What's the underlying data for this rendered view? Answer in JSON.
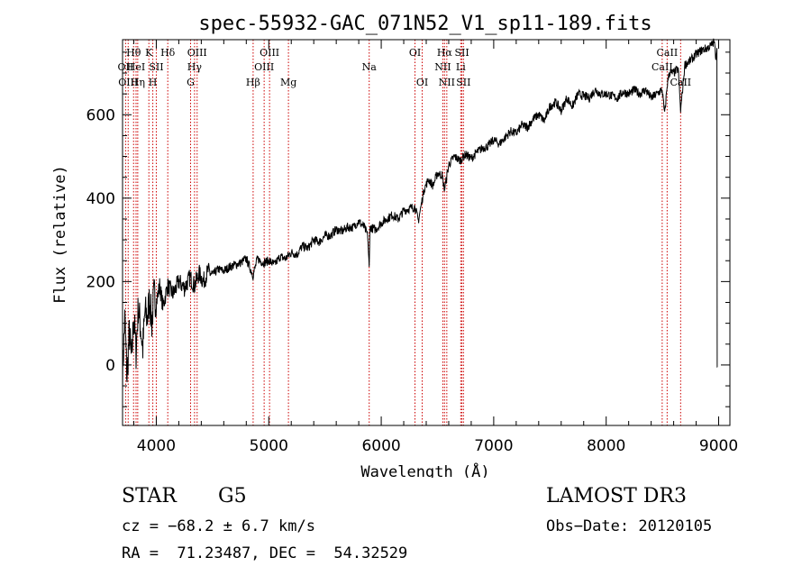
{
  "chart_data": {
    "type": "line",
    "title": "spec-55932-GAC_071N52_V1_sp11-189.fits",
    "xlabel": "Wavelength (Å)",
    "ylabel": "Flux (relative)",
    "xlim": [
      3700,
      9100
    ],
    "ylim": [
      -145,
      780
    ],
    "xticks": [
      4000,
      5000,
      6000,
      7000,
      8000,
      9000
    ],
    "yticks": [
      0,
      200,
      400,
      600
    ],
    "series": [
      {
        "name": "flux",
        "x": [
          3700,
          3720,
          3740,
          3760,
          3780,
          3800,
          3820,
          3840,
          3860,
          3880,
          3900,
          3920,
          3940,
          3960,
          3980,
          4000,
          4030,
          4060,
          4100,
          4150,
          4200,
          4250,
          4300,
          4340,
          4380,
          4420,
          4460,
          4500,
          4550,
          4600,
          4650,
          4700,
          4750,
          4800,
          4860,
          4900,
          4950,
          5000,
          5050,
          5100,
          5150,
          5200,
          5250,
          5300,
          5350,
          5400,
          5450,
          5500,
          5550,
          5600,
          5650,
          5700,
          5750,
          5800,
          5850,
          5880,
          5893,
          5900,
          5950,
          6000,
          6050,
          6100,
          6150,
          6200,
          6250,
          6300,
          6330,
          6380,
          6420,
          6460,
          6500,
          6540,
          6563,
          6600,
          6650,
          6700,
          6750,
          6800,
          6850,
          6900,
          6950,
          7000,
          7050,
          7100,
          7150,
          7200,
          7250,
          7300,
          7350,
          7400,
          7450,
          7500,
          7550,
          7600,
          7650,
          7700,
          7750,
          7800,
          7850,
          7900,
          7950,
          8000,
          8050,
          8100,
          8150,
          8200,
          8250,
          8300,
          8350,
          8400,
          8450,
          8498,
          8520,
          8542,
          8560,
          8600,
          8640,
          8662,
          8700,
          8750,
          8800,
          8850,
          8900,
          8930,
          8960,
          8975,
          8985
        ],
        "y": [
          -20,
          110,
          -30,
          80,
          10,
          120,
          30,
          140,
          90,
          40,
          130,
          110,
          160,
          100,
          170,
          150,
          190,
          140,
          190,
          170,
          200,
          185,
          210,
          190,
          220,
          200,
          225,
          215,
          230,
          225,
          235,
          240,
          245,
          255,
          215,
          255,
          245,
          250,
          240,
          260,
          255,
          270,
          265,
          285,
          280,
          300,
          295,
          310,
          310,
          325,
          320,
          330,
          330,
          345,
          330,
          310,
          230,
          330,
          325,
          340,
          350,
          360,
          350,
          370,
          375,
          380,
          345,
          420,
          445,
          430,
          460,
          455,
          420,
          480,
          500,
          490,
          505,
          495,
          510,
          520,
          525,
          540,
          530,
          545,
          560,
          555,
          575,
          570,
          590,
          600,
          585,
          620,
          630,
          610,
          640,
          620,
          650,
          645,
          640,
          660,
          650,
          650,
          645,
          640,
          655,
          650,
          660,
          650,
          660,
          640,
          650,
          660,
          600,
          670,
          700,
          700,
          710,
          610,
          720,
          730,
          745,
          755,
          760,
          765,
          775,
          740,
          760
        ],
        "min_near_end": -5,
        "color": "#000000"
      }
    ],
    "lines": [
      {
        "label": "Hθ",
        "x": 3798,
        "row": 1
      },
      {
        "label": "OII",
        "x": 3727,
        "row": 2
      },
      {
        "label": "OIII",
        "x": 3750,
        "row": 3
      },
      {
        "label": "HeI",
        "x": 3820,
        "row": 2
      },
      {
        "label": "Hη",
        "x": 3835,
        "row": 3
      },
      {
        "label": "K",
        "x": 3934,
        "row": 1
      },
      {
        "label": "SII",
        "x": 4000,
        "row": 2
      },
      {
        "label": "H",
        "x": 3969,
        "row": 3
      },
      {
        "label": "Hδ",
        "x": 4102,
        "row": 1
      },
      {
        "label": "OIII",
        "x": 4363,
        "row": 1
      },
      {
        "label": "Hγ",
        "x": 4340,
        "row": 2
      },
      {
        "label": "G",
        "x": 4305,
        "row": 3
      },
      {
        "label": "OIII",
        "x": 5007,
        "row": 1
      },
      {
        "label": "OIII",
        "x": 4959,
        "row": 2
      },
      {
        "label": "Hβ",
        "x": 4861,
        "row": 3
      },
      {
        "label": "Mg",
        "x": 5175,
        "row": 3
      },
      {
        "label": "Na",
        "x": 5893,
        "row": 2
      },
      {
        "label": "OI",
        "x": 6300,
        "row": 1
      },
      {
        "label": "OI",
        "x": 6364,
        "row": 3
      },
      {
        "label": "Hα",
        "x": 6563,
        "row": 1
      },
      {
        "label": "SII",
        "x": 6717,
        "row": 1
      },
      {
        "label": "NII",
        "x": 6548,
        "row": 2
      },
      {
        "label": "Li",
        "x": 6707,
        "row": 2
      },
      {
        "label": "NII",
        "x": 6583,
        "row": 3
      },
      {
        "label": "SII",
        "x": 6731,
        "row": 3
      },
      {
        "label": "CaII",
        "x": 8542,
        "row": 1
      },
      {
        "label": "CaII",
        "x": 8498,
        "row": 2
      },
      {
        "label": "CaII",
        "x": 8662,
        "row": 3
      }
    ],
    "line_color": "#cc0000"
  },
  "info": {
    "class_label": "STAR",
    "subclass": "G5",
    "survey": "LAMOST DR3",
    "cz": "cz = −68.2 ± 6.7 km/s",
    "obs_date": "Obs−Date: 20120105",
    "coords": "RA =  71.23487, DEC =  54.32529"
  }
}
